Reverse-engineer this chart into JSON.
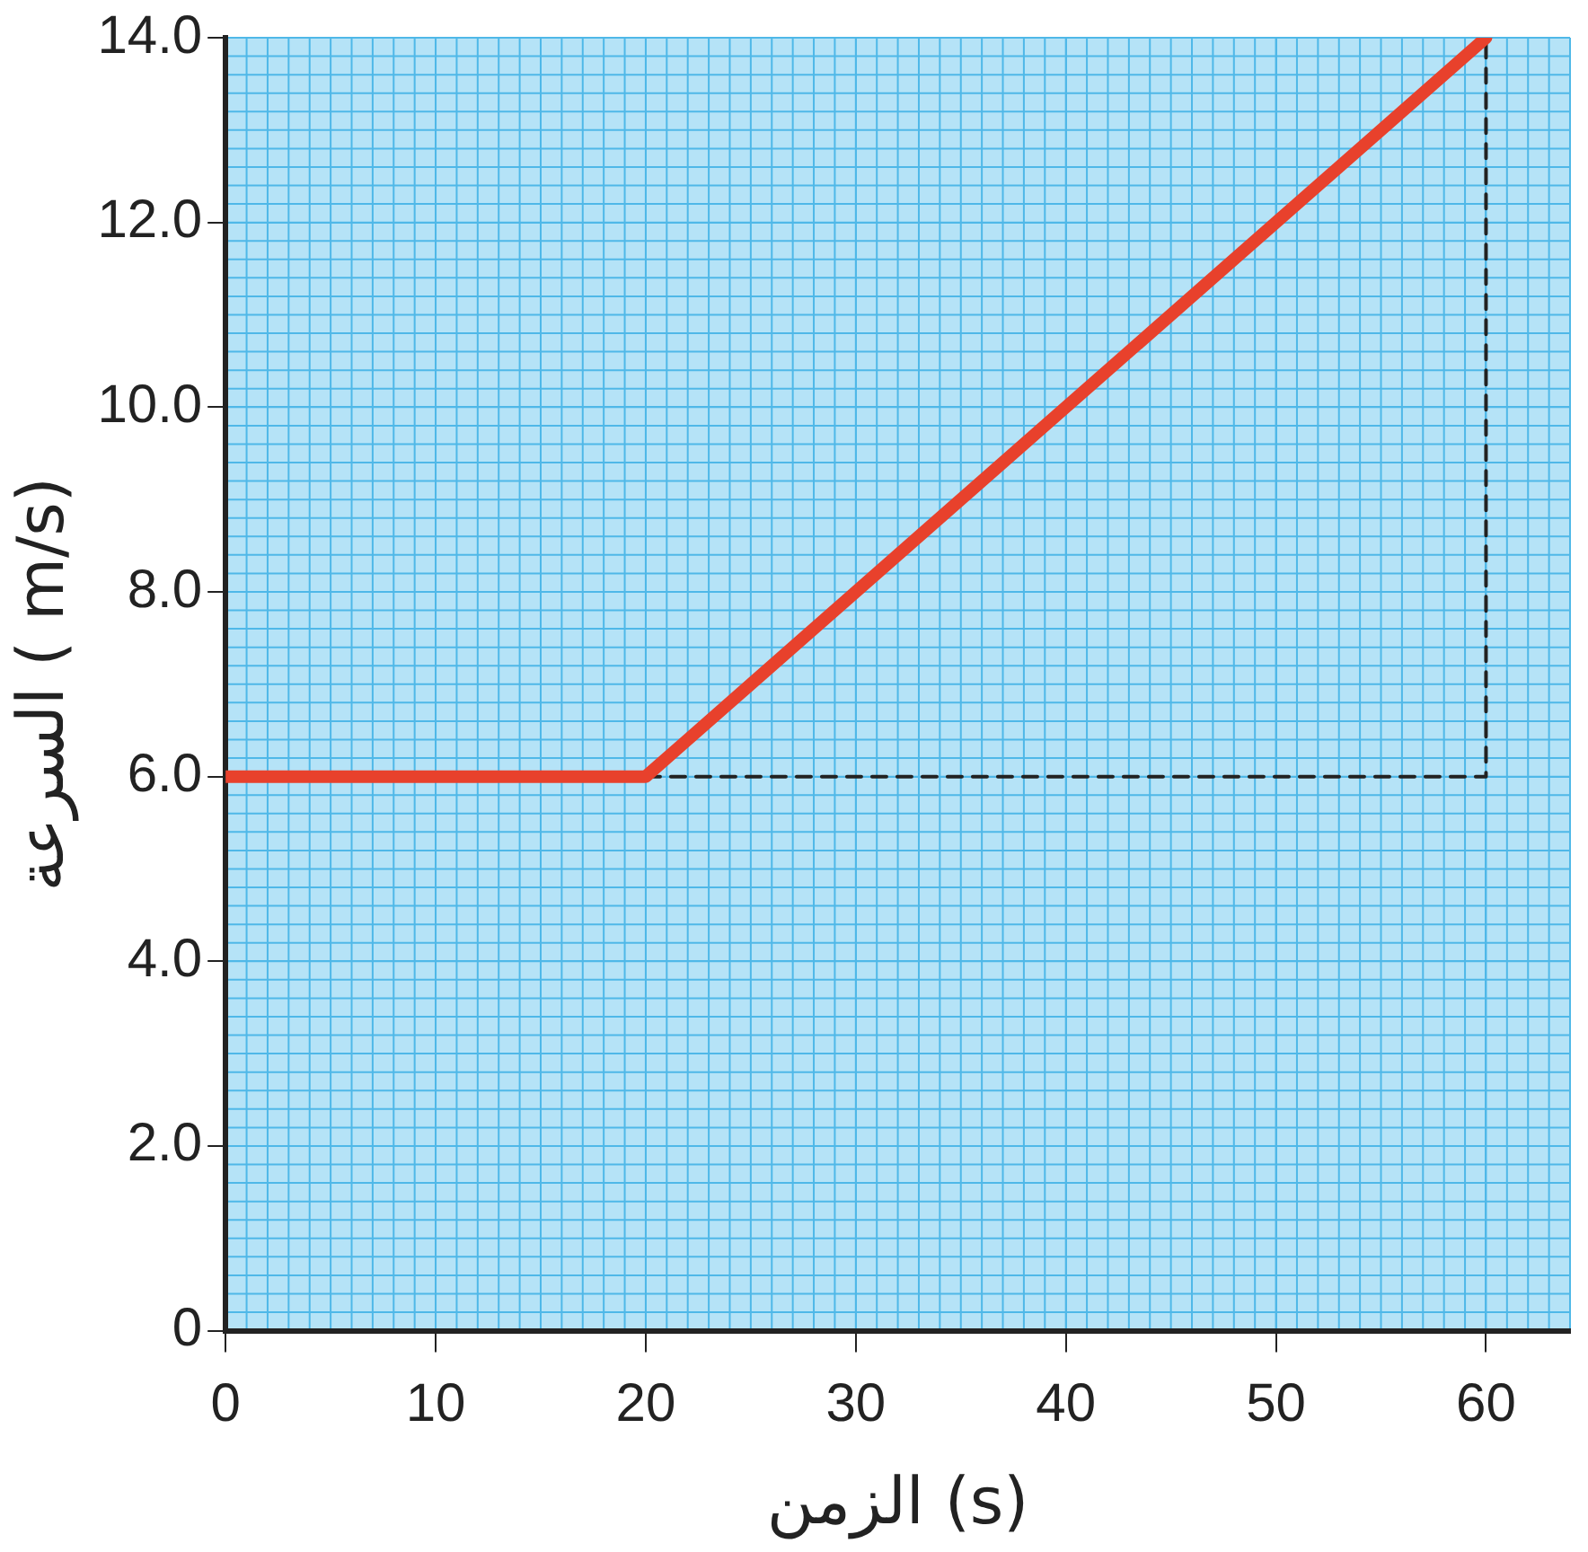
{
  "chart_data": {
    "type": "line",
    "xlabel": "الزمن (s)",
    "ylabel": "السرعة ( m/s)",
    "xlim": [
      0,
      64
    ],
    "ylim": [
      0,
      14
    ],
    "xticks": [
      0,
      10,
      20,
      30,
      40,
      50,
      60
    ],
    "yticks": [
      {
        "value": 0,
        "label": "0"
      },
      {
        "value": 2,
        "label": "2.0"
      },
      {
        "value": 4,
        "label": "4.0"
      },
      {
        "value": 6,
        "label": "6.0"
      },
      {
        "value": 8,
        "label": "8.0"
      },
      {
        "value": 10,
        "label": "10.0"
      },
      {
        "value": 12,
        "label": "12.0"
      },
      {
        "value": 14,
        "label": "14.0"
      }
    ],
    "grid": true,
    "legend": false,
    "marker": "none",
    "series": [
      {
        "color": "#e8412c",
        "x": [
          0,
          20,
          60
        ],
        "values": [
          6,
          6,
          14
        ],
        "line_style": "solid"
      },
      {
        "color": "#222222",
        "x": [
          20,
          60,
          60
        ],
        "values": [
          6,
          6,
          14
        ],
        "line_style": "dashed"
      }
    ]
  }
}
